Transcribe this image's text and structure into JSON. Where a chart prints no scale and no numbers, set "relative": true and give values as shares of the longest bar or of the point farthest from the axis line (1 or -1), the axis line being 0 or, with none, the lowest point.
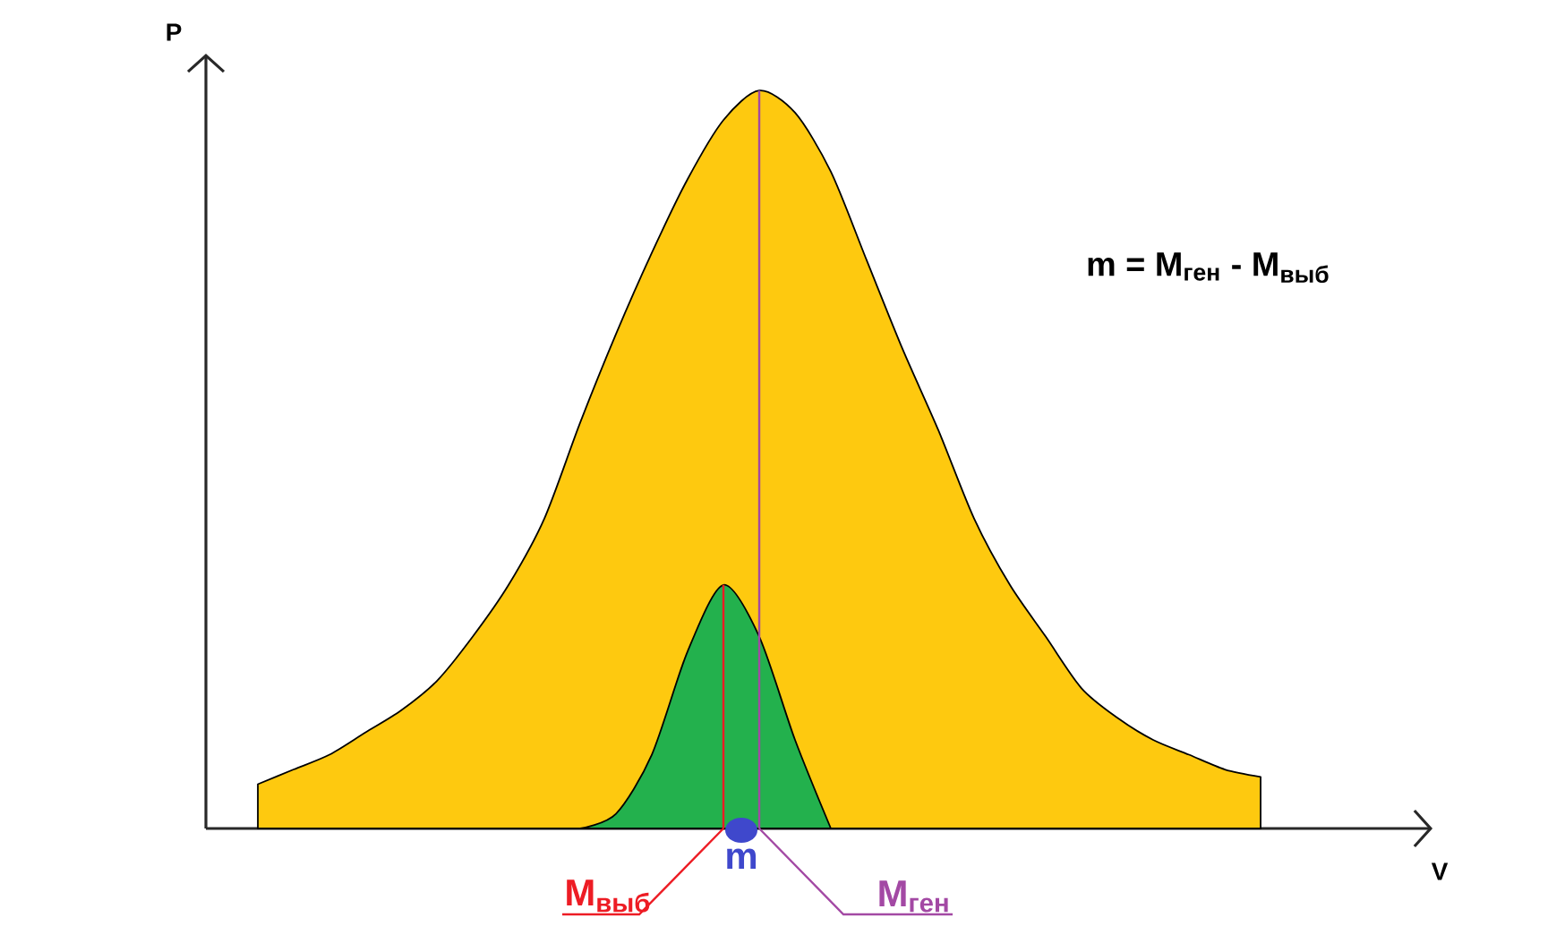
{
  "chart_data": {
    "type": "area",
    "relative": true,
    "xlabel": "V",
    "ylabel": "P",
    "categories": [
      null,
      null,
      null,
      null,
      null,
      null,
      null,
      null,
      null,
      null,
      null,
      null,
      null,
      null,
      null,
      null,
      null,
      null,
      null,
      null,
      null,
      null,
      null,
      null,
      null,
      null,
      null,
      null,
      null,
      null,
      null,
      null,
      null,
      null
    ],
    "series": [
      {
        "color": "#fec90f",
        "values": [
          null,
          0.06,
          0.08,
          0.1,
          0.13,
          0.16,
          0.2,
          0.26,
          0.33,
          0.42,
          0.55,
          0.67,
          0.78,
          0.88,
          0.96,
          1,
          0.97,
          0.89,
          0.77,
          0.65,
          0.54,
          0.42,
          0.33,
          0.26,
          0.19,
          0.15,
          0.12,
          0.1,
          0.08,
          0.07,
          null,
          null,
          null,
          null
        ]
      },
      {
        "color": "#23b14d",
        "values": [
          null,
          null,
          null,
          null,
          null,
          null,
          null,
          null,
          null,
          null,
          0,
          0.02,
          0.1,
          0.24,
          0.33,
          0.26,
          0.12,
          0,
          null,
          null,
          null,
          null,
          null,
          null,
          null,
          null,
          null,
          null,
          null,
          null,
          null,
          null,
          null,
          null
        ]
      }
    ],
    "annotations": [
      "m = M$_{ген}$ - M$_{выб}$",
      "m",
      "M$_{выб}$",
      "M$_{ген}$"
    ]
  }
}
